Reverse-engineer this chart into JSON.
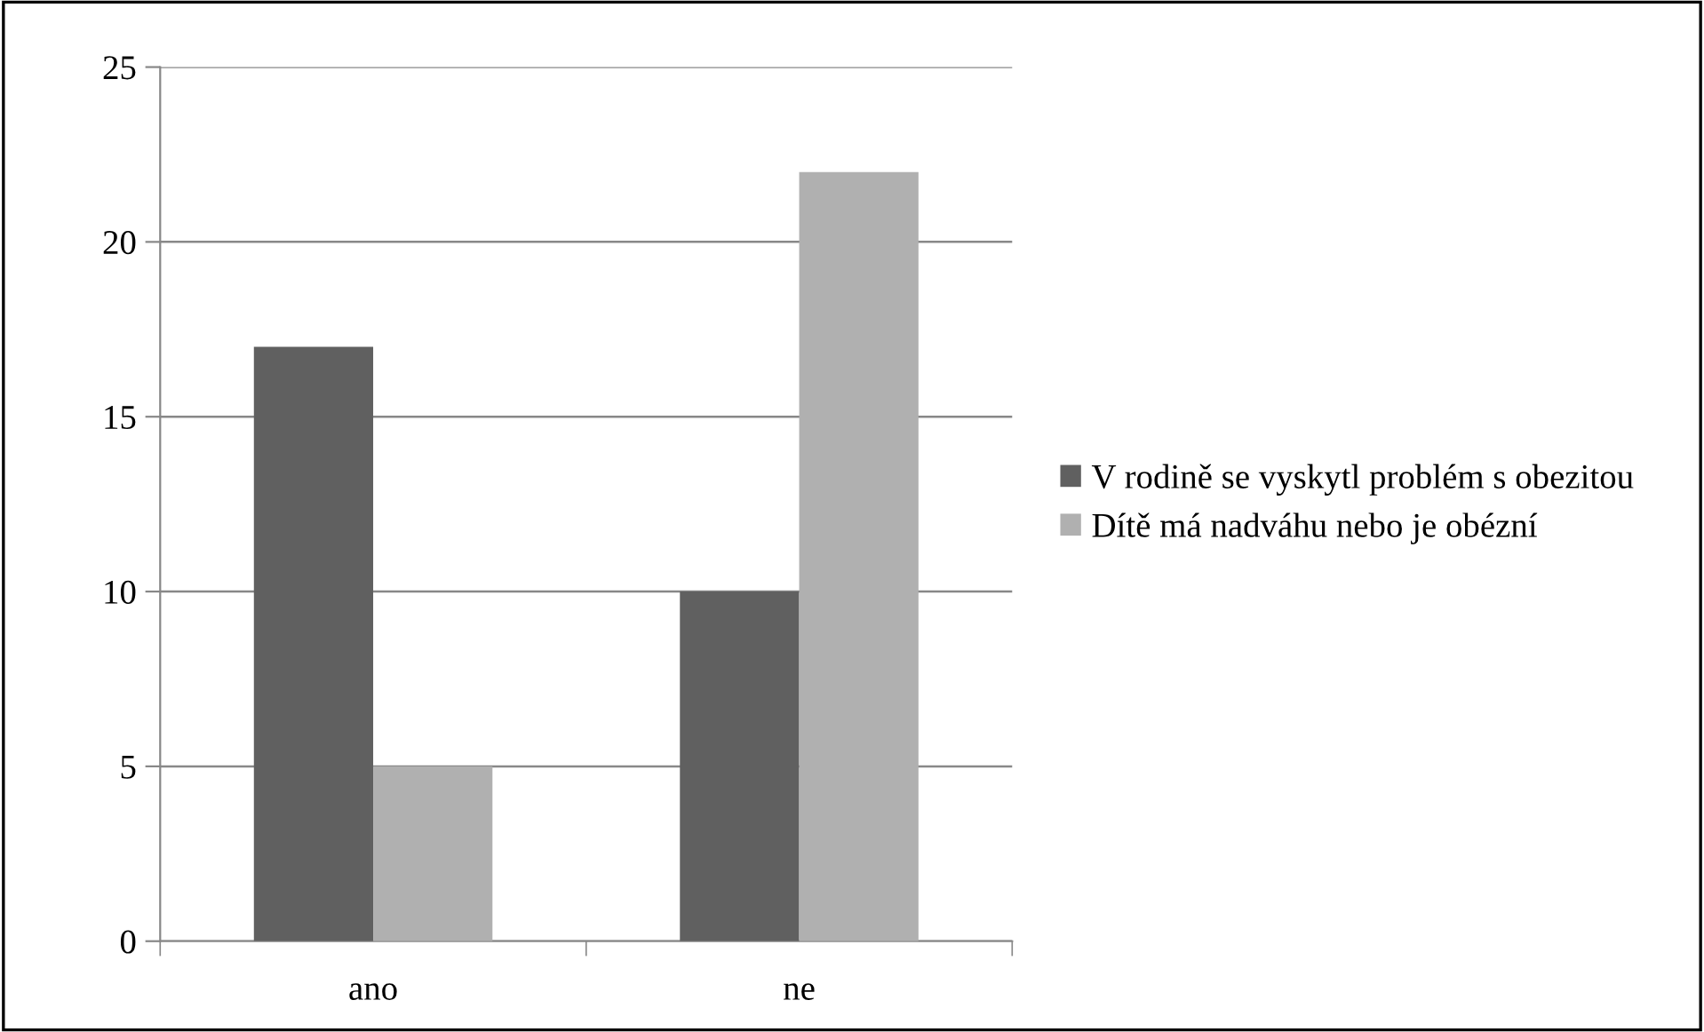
{
  "chart_data": {
    "type": "bar",
    "categories": [
      "ano",
      "ne"
    ],
    "series": [
      {
        "name": "V rodině se vyskytl problém s obezitou",
        "color": "#606060",
        "values": [
          17,
          10
        ]
      },
      {
        "name": "Dítě má nadváhu nebo je obézní",
        "color": "#b0b0b0",
        "values": [
          5,
          22
        ]
      }
    ],
    "ylim": [
      0,
      25
    ],
    "yticks": [
      0,
      5,
      10,
      15,
      20,
      25
    ],
    "grid": "y",
    "legend": "right"
  }
}
